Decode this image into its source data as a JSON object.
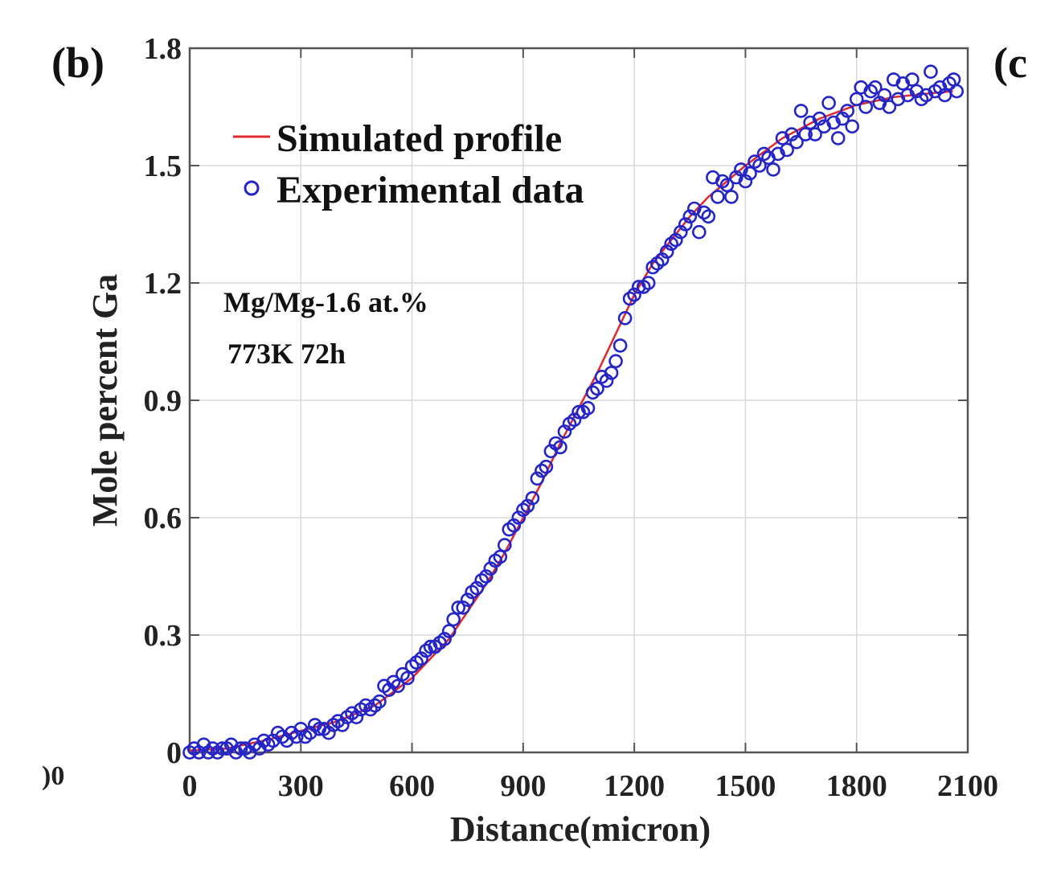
{
  "panel_label": "(b)",
  "next_panel_fragment": "(c",
  "prev_panel_fragment": ")0",
  "chart_data": {
    "type": "scatter",
    "xlabel": "Distance(micron)",
    "ylabel": "Mole percent Ga",
    "xlim": [
      0,
      2100
    ],
    "ylim": [
      0,
      1.8
    ],
    "xticks": [
      0,
      300,
      600,
      900,
      1200,
      1500,
      1800,
      2100
    ],
    "xtick_labels": [
      "0",
      "300",
      "600",
      "900",
      "1200",
      "1500",
      "1800",
      "2100"
    ],
    "yticks": [
      0,
      0.3,
      0.6,
      0.9,
      1.2,
      1.5,
      1.8
    ],
    "ytick_labels": [
      "0",
      "0.3",
      "0.6",
      "0.9",
      "1.2",
      "1.5",
      "1.8"
    ],
    "grid": true,
    "legend_position": "top-left",
    "annotations": [
      "Mg/Mg-1.6 at.%",
      "773K 72h"
    ],
    "colors": {
      "simulated": "#e0282e",
      "experimental": "#2424c8",
      "grid": "#d9d9d9",
      "axis": "#555555"
    },
    "series": [
      {
        "name": "Simulated profile",
        "kind": "line",
        "x": [
          0,
          100,
          200,
          300,
          400,
          500,
          600,
          700,
          750,
          800,
          850,
          900,
          950,
          1000,
          1050,
          1100,
          1150,
          1200,
          1250,
          1300,
          1350,
          1400,
          1450,
          1500,
          1600,
          1700,
          1800,
          1900,
          2000,
          2060
        ],
        "y": [
          0.005,
          0.01,
          0.03,
          0.055,
          0.08,
          0.12,
          0.19,
          0.29,
          0.36,
          0.43,
          0.51,
          0.6,
          0.69,
          0.79,
          0.88,
          0.97,
          1.07,
          1.17,
          1.25,
          1.31,
          1.37,
          1.42,
          1.46,
          1.5,
          1.57,
          1.62,
          1.655,
          1.675,
          1.685,
          1.69
        ]
      },
      {
        "name": "Experimental data",
        "kind": "scatter",
        "x": [
          0,
          12,
          25,
          38,
          50,
          62,
          75,
          88,
          100,
          112,
          125,
          138,
          150,
          162,
          175,
          188,
          200,
          212,
          225,
          238,
          250,
          262,
          275,
          288,
          300,
          312,
          325,
          338,
          350,
          362,
          375,
          388,
          400,
          412,
          425,
          438,
          450,
          462,
          475,
          488,
          500,
          512,
          525,
          538,
          550,
          562,
          575,
          588,
          600,
          612,
          625,
          638,
          650,
          662,
          675,
          688,
          700,
          712,
          725,
          738,
          750,
          762,
          775,
          788,
          800,
          812,
          825,
          838,
          850,
          862,
          875,
          888,
          900,
          912,
          925,
          938,
          950,
          962,
          975,
          988,
          1000,
          1012,
          1025,
          1038,
          1050,
          1062,
          1075,
          1088,
          1100,
          1112,
          1125,
          1138,
          1150,
          1162,
          1175,
          1188,
          1200,
          1212,
          1225,
          1238,
          1250,
          1262,
          1275,
          1288,
          1300,
          1312,
          1325,
          1338,
          1350,
          1362,
          1375,
          1388,
          1400,
          1412,
          1425,
          1438,
          1450,
          1462,
          1475,
          1488,
          1500,
          1512,
          1525,
          1538,
          1550,
          1562,
          1575,
          1588,
          1600,
          1612,
          1625,
          1638,
          1650,
          1662,
          1675,
          1688,
          1700,
          1712,
          1725,
          1738,
          1750,
          1762,
          1775,
          1788,
          1800,
          1812,
          1825,
          1838,
          1850,
          1862,
          1875,
          1888,
          1900,
          1912,
          1925,
          1938,
          1950,
          1962,
          1975,
          1988,
          2000,
          2012,
          2025,
          2038,
          2050,
          2062,
          2070
        ],
        "y": [
          0.0,
          0.01,
          0.0,
          0.02,
          0.0,
          0.01,
          0.0,
          0.01,
          0.01,
          0.02,
          0.0,
          0.01,
          0.01,
          0.0,
          0.02,
          0.01,
          0.03,
          0.02,
          0.03,
          0.05,
          0.04,
          0.03,
          0.05,
          0.04,
          0.06,
          0.04,
          0.05,
          0.07,
          0.06,
          0.06,
          0.05,
          0.07,
          0.08,
          0.07,
          0.09,
          0.1,
          0.09,
          0.11,
          0.12,
          0.11,
          0.12,
          0.13,
          0.17,
          0.16,
          0.18,
          0.17,
          0.2,
          0.19,
          0.22,
          0.23,
          0.24,
          0.26,
          0.27,
          0.27,
          0.28,
          0.29,
          0.31,
          0.34,
          0.37,
          0.37,
          0.39,
          0.41,
          0.42,
          0.44,
          0.45,
          0.47,
          0.49,
          0.5,
          0.53,
          0.57,
          0.58,
          0.6,
          0.62,
          0.63,
          0.65,
          0.7,
          0.72,
          0.73,
          0.77,
          0.79,
          0.78,
          0.82,
          0.84,
          0.85,
          0.87,
          0.87,
          0.88,
          0.92,
          0.93,
          0.96,
          0.95,
          0.97,
          1.0,
          1.04,
          1.11,
          1.16,
          1.17,
          1.19,
          1.19,
          1.2,
          1.24,
          1.25,
          1.26,
          1.28,
          1.3,
          1.31,
          1.33,
          1.35,
          1.37,
          1.39,
          1.33,
          1.38,
          1.37,
          1.47,
          1.42,
          1.46,
          1.45,
          1.42,
          1.47,
          1.49,
          1.46,
          1.48,
          1.51,
          1.5,
          1.53,
          1.52,
          1.49,
          1.53,
          1.57,
          1.54,
          1.58,
          1.56,
          1.64,
          1.58,
          1.61,
          1.58,
          1.62,
          1.6,
          1.66,
          1.61,
          1.57,
          1.62,
          1.64,
          1.6,
          1.67,
          1.7,
          1.65,
          1.69,
          1.7,
          1.66,
          1.68,
          1.65,
          1.72,
          1.67,
          1.71,
          1.68,
          1.72,
          1.69,
          1.67,
          1.68,
          1.74,
          1.69,
          1.7,
          1.68,
          1.71,
          1.72,
          1.69
        ]
      }
    ]
  }
}
